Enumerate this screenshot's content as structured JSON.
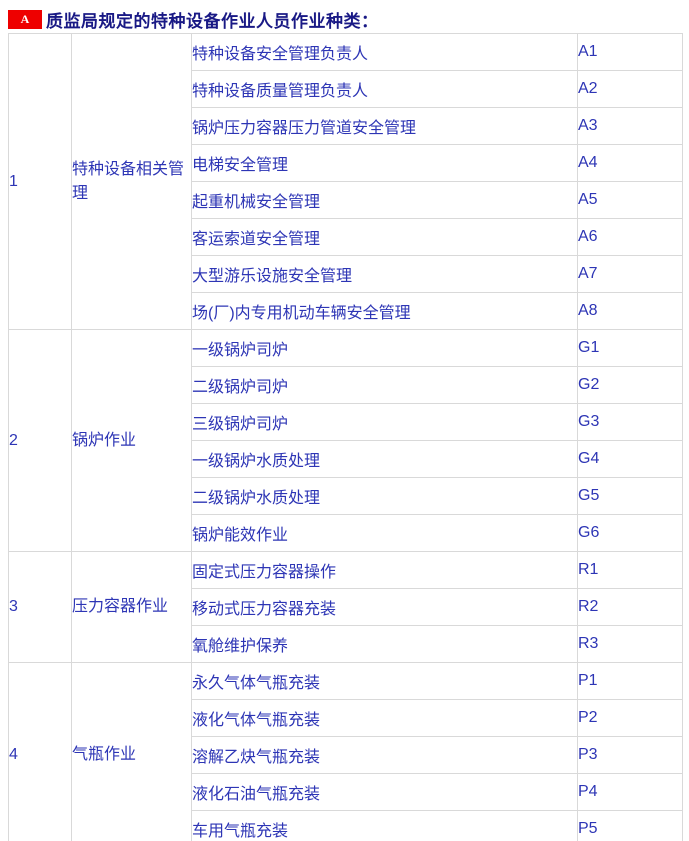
{
  "header": {
    "badge": "A",
    "title": "质监局规定的特种设备作业人员作业种类："
  },
  "colors": {
    "accent_red": "#ee0000",
    "title_navy": "#191985",
    "body_blue": "#2d35b5",
    "border_gray": "#d9d9d9"
  },
  "table": {
    "groups": [
      {
        "no": "1",
        "category": "特种设备相关管理",
        "rows": [
          {
            "name": "特种设备安全管理负责人",
            "code": "A1"
          },
          {
            "name": "特种设备质量管理负责人",
            "code": "A2"
          },
          {
            "name": "锅炉压力容器压力管道安全管理",
            "code": "A3"
          },
          {
            "name": "电梯安全管理",
            "code": "A4"
          },
          {
            "name": "起重机械安全管理",
            "code": "A5"
          },
          {
            "name": "客运索道安全管理",
            "code": "A6"
          },
          {
            "name": "大型游乐设施安全管理",
            "code": "A7"
          },
          {
            "name": "场(厂)内专用机动车辆安全管理",
            "code": "A8"
          }
        ]
      },
      {
        "no": "2",
        "category": "锅炉作业",
        "rows": [
          {
            "name": "一级锅炉司炉",
            "code": "G1"
          },
          {
            "name": "二级锅炉司炉",
            "code": "G2"
          },
          {
            "name": "三级锅炉司炉",
            "code": "G3"
          },
          {
            "name": "一级锅炉水质处理",
            "code": "G4"
          },
          {
            "name": "二级锅炉水质处理",
            "code": "G5"
          },
          {
            "name": "锅炉能效作业",
            "code": "G6"
          }
        ]
      },
      {
        "no": "3",
        "category": "压力容器作业",
        "rows": [
          {
            "name": "固定式压力容器操作",
            "code": "R1"
          },
          {
            "name": "移动式压力容器充装",
            "code": "R2"
          },
          {
            "name": "氧舱维护保养",
            "code": "R3"
          }
        ]
      },
      {
        "no": "4",
        "category": "气瓶作业",
        "rows": [
          {
            "name": "永久气体气瓶充装",
            "code": "P1"
          },
          {
            "name": "液化气体气瓶充装",
            "code": "P2"
          },
          {
            "name": "溶解乙炔气瓶充装",
            "code": "P3"
          },
          {
            "name": "液化石油气瓶充装",
            "code": "P4"
          },
          {
            "name": "车用气瓶充装",
            "code": "P5"
          }
        ]
      }
    ]
  }
}
